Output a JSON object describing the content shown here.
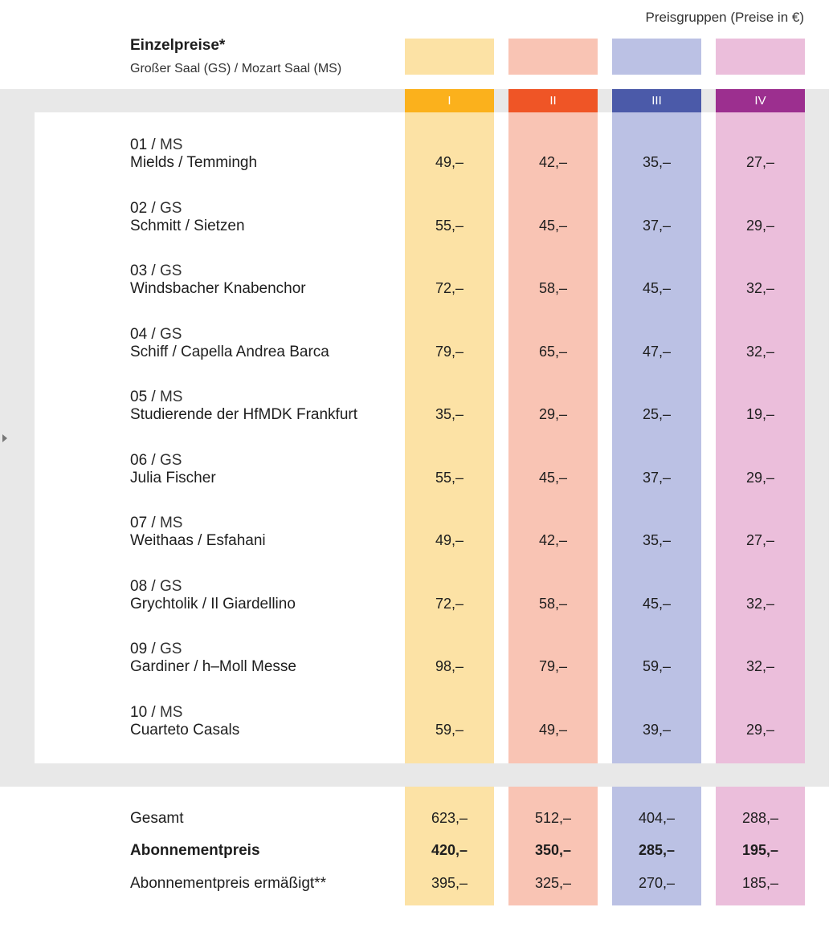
{
  "header": {
    "note": "Preisgruppen (Preise in €)",
    "title": "Einzelpreise*",
    "subtitle": "Großer Saal (GS) / Mozart Saal (MS)"
  },
  "colors": {
    "band": "#e8e8e8",
    "groups": [
      {
        "light": "#fce2a5",
        "strong": "#fbb11c"
      },
      {
        "light": "#f9c4b4",
        "strong": "#ef5526"
      },
      {
        "light": "#bbc1e4",
        "strong": "#4b5aa9"
      },
      {
        "light": "#ebbedb",
        "strong": "#9c2f8f"
      }
    ]
  },
  "groups": [
    "I",
    "II",
    "III",
    "IV"
  ],
  "rows": [
    {
      "num": "01",
      "venue": "MS",
      "name": "Mields / Temmingh",
      "prices": [
        "49,–",
        "42,–",
        "35,–",
        "27,–"
      ]
    },
    {
      "num": "02",
      "venue": "GS",
      "name": "Schmitt / Sietzen",
      "prices": [
        "55,–",
        "45,–",
        "37,–",
        "29,–"
      ]
    },
    {
      "num": "03",
      "venue": "GS",
      "name": "Windsbacher Knabenchor",
      "prices": [
        "72,–",
        "58,–",
        "45,–",
        "32,–"
      ]
    },
    {
      "num": "04",
      "venue": "GS",
      "name": "Schiff / Capella Andrea Barca",
      "prices": [
        "79,–",
        "65,–",
        "47,–",
        "32,–"
      ]
    },
    {
      "num": "05",
      "venue": "MS",
      "name": "Studierende der HfMDK Frankfurt",
      "prices": [
        "35,–",
        "29,–",
        "25,–",
        "19,–"
      ]
    },
    {
      "num": "06",
      "venue": "GS",
      "name": "Julia Fischer",
      "prices": [
        "55,–",
        "45,–",
        "37,–",
        "29,–"
      ]
    },
    {
      "num": "07",
      "venue": "MS",
      "name": "Weithaas / Esfahani",
      "prices": [
        "49,–",
        "42,–",
        "35,–",
        "27,–"
      ]
    },
    {
      "num": "08",
      "venue": "GS",
      "name": "Grychtolik / Il Giardellino",
      "prices": [
        "72,–",
        "58,–",
        "45,–",
        "32,–"
      ]
    },
    {
      "num": "09",
      "venue": "GS",
      "name": "Gardiner / h–Moll Messe",
      "prices": [
        "98,–",
        "79,–",
        "59,–",
        "32,–"
      ]
    },
    {
      "num": "10",
      "venue": "MS",
      "name": "Cuarteto Casals",
      "prices": [
        "59,–",
        "49,–",
        "39,–",
        "29,–"
      ]
    }
  ],
  "totals": [
    {
      "label": "Gesamt",
      "bold": false,
      "prices": [
        "623,–",
        "512,–",
        "404,–",
        "288,–"
      ]
    },
    {
      "label": "Abonnementpreis",
      "bold": true,
      "prices": [
        "420,–",
        "350,–",
        "285,–",
        "195,–"
      ]
    },
    {
      "label": "Abonnementpreis ermäßigt**",
      "bold": false,
      "prices": [
        "395,–",
        "325,–",
        "270,–",
        "185,–"
      ]
    }
  ]
}
